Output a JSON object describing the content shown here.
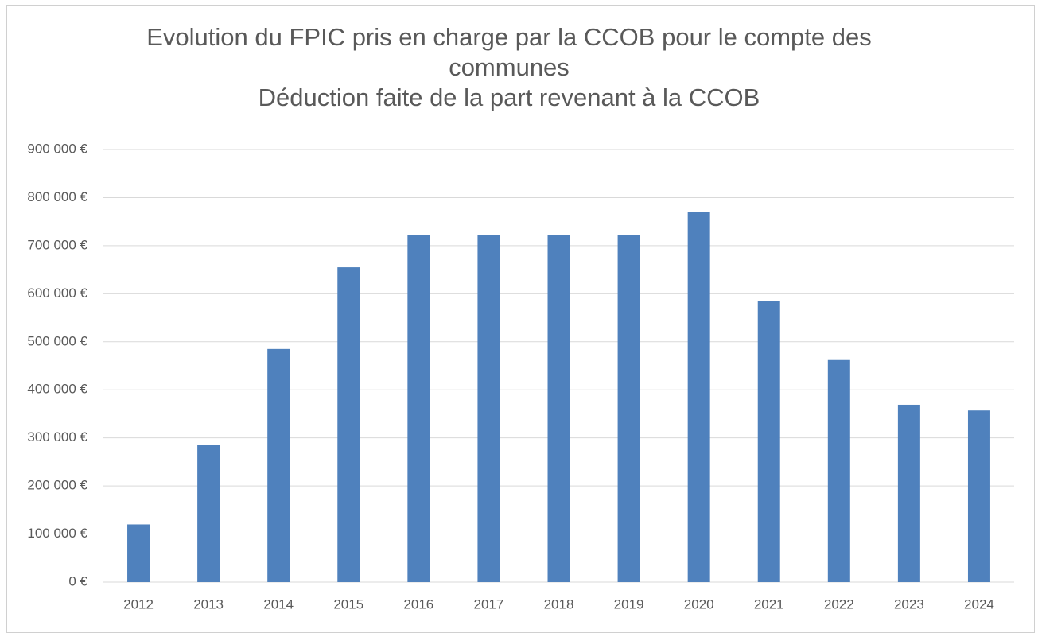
{
  "chart_data": {
    "type": "bar",
    "title": "Evolution du FPIC pris en charge par la CCOB pour le compte des communes",
    "subtitle": "Déduction faite de la part revenant à la CCOB",
    "categories": [
      "2012",
      "2013",
      "2014",
      "2015",
      "2016",
      "2017",
      "2018",
      "2019",
      "2020",
      "2021",
      "2022",
      "2023",
      "2024"
    ],
    "values": [
      120000,
      285000,
      485000,
      655000,
      722000,
      722000,
      722000,
      722000,
      770000,
      584000,
      462000,
      369000,
      357000
    ],
    "color": "#4f81bd",
    "ylim": [
      0,
      900000
    ],
    "yticks": [
      {
        "value": 0,
        "label": "0 €"
      },
      {
        "value": 100000,
        "label": "100 000 €"
      },
      {
        "value": 200000,
        "label": "200 000 €"
      },
      {
        "value": 300000,
        "label": "300 000 €"
      },
      {
        "value": 400000,
        "label": "400 000 €"
      },
      {
        "value": 500000,
        "label": "500 000 €"
      },
      {
        "value": 600000,
        "label": "600 000 €"
      },
      {
        "value": 700000,
        "label": "700 000 €"
      },
      {
        "value": 800000,
        "label": "800 000 €"
      },
      {
        "value": 900000,
        "label": "900 000 €"
      }
    ],
    "grid": true
  }
}
